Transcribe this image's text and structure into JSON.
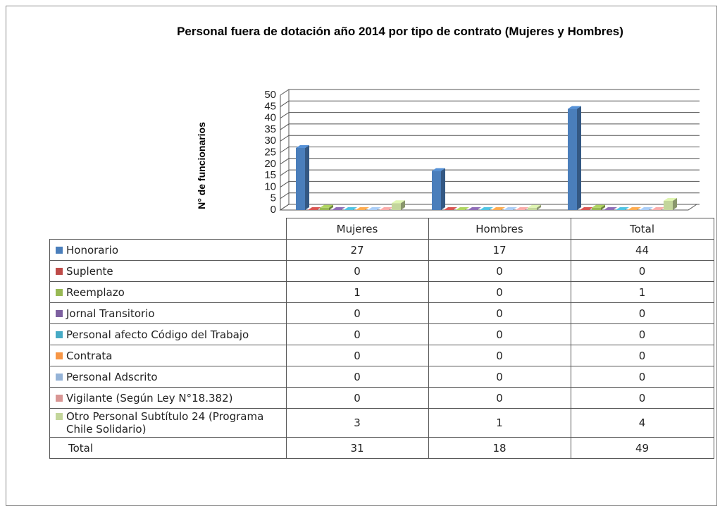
{
  "chart_data": {
    "type": "bar",
    "title": "Personal fuera de dotación año 2014 por tipo de contrato (Mujeres y Hombres)",
    "ylabel": "N° de funcionarios",
    "categories": [
      "Mujeres",
      "Hombres",
      "Total"
    ],
    "series": [
      {
        "name": "Honorario",
        "color": "#4a7ebb",
        "values": [
          27,
          17,
          44
        ]
      },
      {
        "name": "Suplente",
        "color": "#be4b48",
        "values": [
          0,
          0,
          0
        ]
      },
      {
        "name": "Reemplazo",
        "color": "#98b954",
        "values": [
          1,
          0,
          1
        ]
      },
      {
        "name": "Jornal Transitorio",
        "color": "#7d60a0",
        "values": [
          0,
          0,
          0
        ]
      },
      {
        "name": "Personal afecto Código del Trabajo",
        "color": "#46aac5",
        "values": [
          0,
          0,
          0
        ]
      },
      {
        "name": "Contrata",
        "color": "#f79646",
        "values": [
          0,
          0,
          0
        ]
      },
      {
        "name": "Personal Adscrito",
        "color": "#95b3d7",
        "values": [
          0,
          0,
          0
        ]
      },
      {
        "name": "Vigilante (Según Ley N°18.382)",
        "color": "#d99694",
        "values": [
          0,
          0,
          0
        ]
      },
      {
        "name": "Otro Personal Subtítulo 24 (Programa Chile Solidario)",
        "color": "#c3d69b",
        "values": [
          3,
          1,
          4
        ]
      }
    ],
    "totals": {
      "name": "Total",
      "values": [
        31,
        18,
        49
      ]
    },
    "ylim": [
      0,
      50
    ],
    "yticks": [
      0,
      5,
      10,
      15,
      20,
      25,
      30,
      35,
      40,
      45,
      50
    ],
    "grid": true
  }
}
